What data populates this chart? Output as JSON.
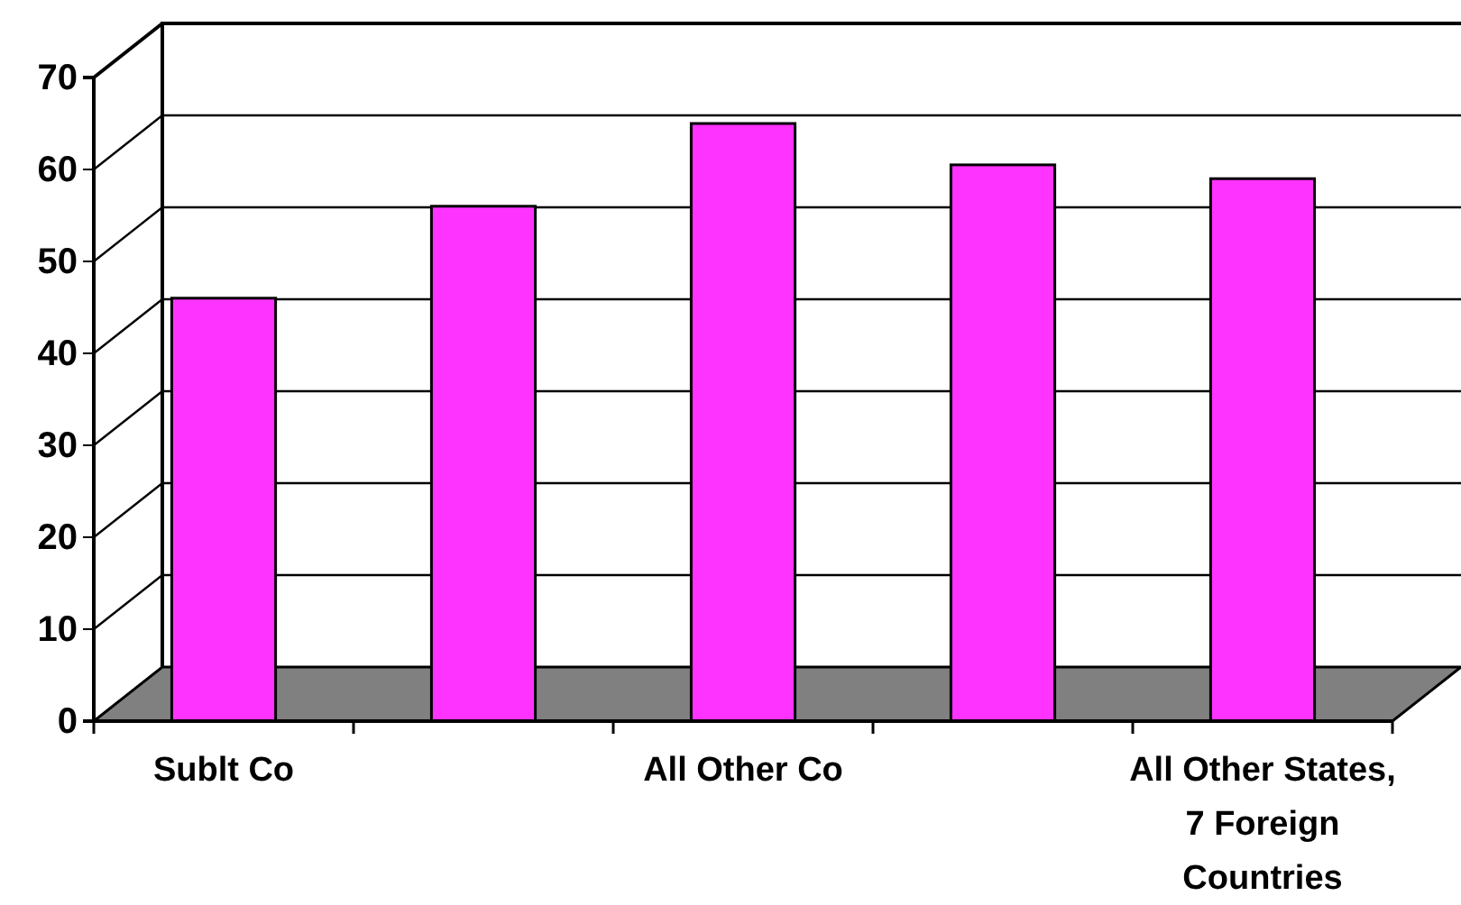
{
  "chart_data": {
    "type": "bar",
    "categories": [
      "Sublt Co",
      null,
      "All Other Co",
      null,
      "All Other States, 7 Foreign Countries"
    ],
    "values": [
      46,
      56,
      65,
      60.5,
      59
    ],
    "color": "#ff33ff",
    "ylim": [
      0,
      70
    ],
    "yticks": [
      0,
      10,
      20,
      30,
      40,
      50,
      60,
      70
    ],
    "grid": "y"
  }
}
